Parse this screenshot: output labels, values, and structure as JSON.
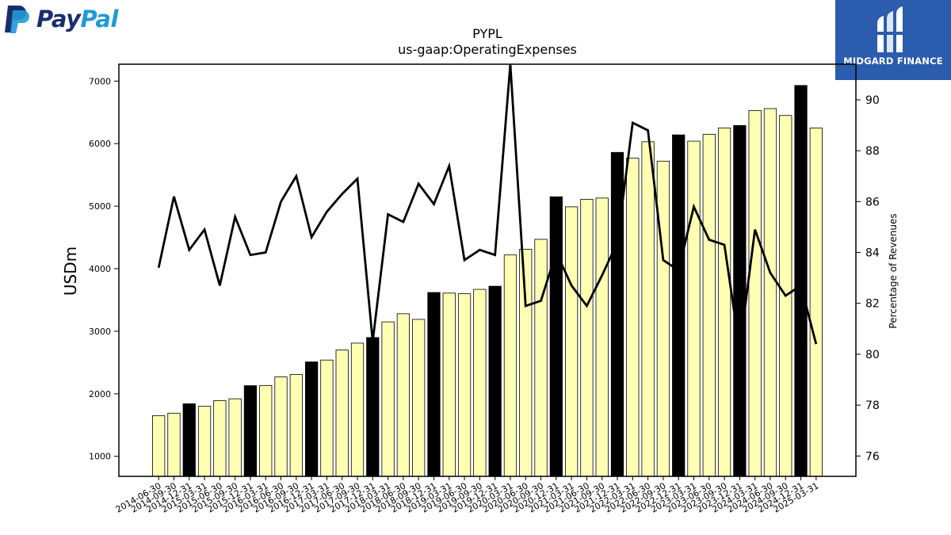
{
  "brand": {
    "left_logo_text_1": "Pay",
    "left_logo_text_2": "Pal",
    "right_logo_text": "MIDGARD FINANCE",
    "paypal_dark": "#1b2e6b",
    "paypal_light": "#1f9ad6",
    "midgard_bg": "#2b5cad"
  },
  "chart_data": {
    "type": "bar",
    "title": "PYPL",
    "subtitle": "us-gaap:OperatingExpenses",
    "ylabel": "USDm",
    "y2label": "Percentage of Revenues",
    "ylim": [
      680,
      7270
    ],
    "y2lim": [
      75.2,
      91.4
    ],
    "yticks": [
      1000,
      2000,
      3000,
      4000,
      5000,
      6000,
      7000
    ],
    "y2ticks": [
      76,
      78,
      80,
      82,
      84,
      86,
      88,
      90
    ],
    "categories": [
      "2014-06-30",
      "2014-09-30",
      "2014-12-31",
      "2015-03-31",
      "2015-06-30",
      "2015-09-30",
      "2015-12-31",
      "2016-03-31",
      "2016-06-30",
      "2016-09-30",
      "2016-12-31",
      "2017-03-31",
      "2017-06-30",
      "2017-09-30",
      "2017-12-31",
      "2018-03-31",
      "2018-06-30",
      "2018-09-30",
      "2018-12-31",
      "2019-03-31",
      "2019-06-30",
      "2019-09-30",
      "2019-12-31",
      "2020-03-31",
      "2020-06-30",
      "2020-09-30",
      "2020-12-31",
      "2021-03-31",
      "2021-06-30",
      "2021-09-30",
      "2021-12-31",
      "2022-03-31",
      "2022-06-30",
      "2022-09-30",
      "2022-12-31",
      "2023-03-31",
      "2023-06-30",
      "2023-09-30",
      "2023-12-31",
      "2024-03-31",
      "2024-06-30",
      "2024-09-30",
      "2024-12-31",
      "2025-03-31"
    ],
    "series": [
      {
        "type": "bar",
        "values": [
          1650,
          1690,
          1840,
          1800,
          1890,
          1920,
          2130,
          2130,
          2270,
          2310,
          2510,
          2540,
          2700,
          2810,
          2900,
          3150,
          3280,
          3190,
          3620,
          3610,
          3600,
          3670,
          3720,
          4220,
          4310,
          4470,
          5150,
          4990,
          5110,
          5130,
          5860,
          5770,
          6030,
          5720,
          6140,
          6040,
          6150,
          6250,
          6290,
          6530,
          6560,
          6450,
          6930,
          6250
        ],
        "highlight_color": "#000000",
        "base_color": "#ffffb3",
        "highlight_rule": "every Q4 (December) period"
      },
      {
        "type": "line",
        "axis": "right",
        "color": "#000000",
        "values": [
          83.4,
          86.2,
          84.1,
          84.9,
          82.7,
          85.4,
          83.9,
          84.0,
          86.0,
          87.0,
          84.6,
          85.6,
          86.3,
          86.9,
          80.5,
          85.5,
          85.2,
          86.7,
          85.9,
          87.4,
          83.7,
          84.1,
          83.9,
          91.4,
          81.9,
          82.1,
          84.0,
          82.7,
          81.9,
          83.1,
          84.4,
          89.1,
          88.8,
          83.7,
          83.3,
          85.8,
          84.5,
          84.3,
          80.2,
          84.9,
          83.2,
          82.3,
          82.7,
          80.4
        ]
      }
    ],
    "grid": false,
    "legend": "none"
  }
}
